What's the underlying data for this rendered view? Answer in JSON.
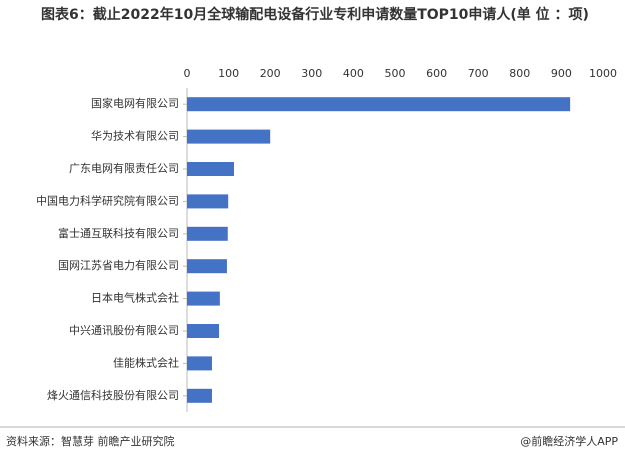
{
  "chart_data": {
    "type": "hbar",
    "title": "图表6：截止2022年10月全球输配电设备行业专利申请数量TOP10申请人(单 位 ：项)",
    "categories": [
      "国家电网有限公司",
      "华为技术有限公司",
      "广东电网有限责任公司",
      "中国电力科学研究院有限公司",
      "富士通互联科技有限公司",
      "国网江苏省电力有限公司",
      "日本电气株式会社",
      "中兴通讯股份有限公司",
      "佳能株式会社",
      "烽火通信科技股份有限公司"
    ],
    "values": [
      921,
      200,
      113,
      99,
      98,
      96,
      79,
      77,
      60,
      60
    ],
    "color": "#4472c4",
    "xlim": [
      0,
      1000
    ],
    "xticks": [
      0,
      100,
      200,
      300,
      400,
      500,
      600,
      700,
      800,
      900,
      1000
    ],
    "source": "资料来源：智慧芽 前瞻产业研究院",
    "credit": "@前瞻经济学人APP"
  }
}
